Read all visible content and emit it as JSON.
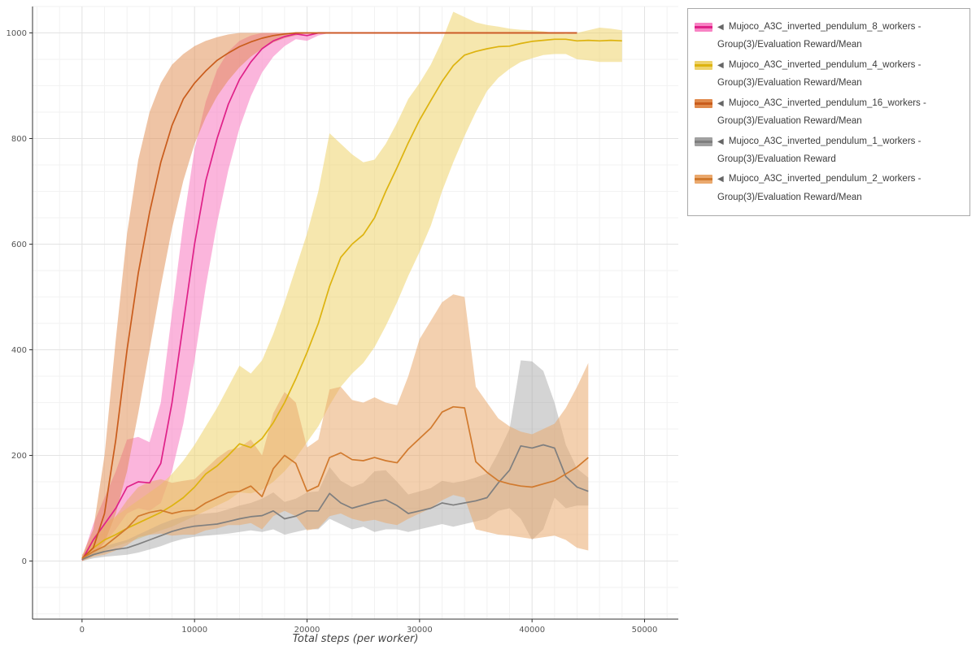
{
  "legend": {
    "marker": "◀",
    "border_color": "#a9a9a9"
  },
  "chart_data": {
    "type": "line",
    "title": "",
    "xlabel": "Total steps (per worker)",
    "ylabel": "",
    "xlim": [
      -4400,
      53000
    ],
    "ylim": [
      -110,
      1050
    ],
    "x_ticks": [
      0,
      10000,
      20000,
      30000,
      40000,
      50000
    ],
    "y_ticks": [
      0,
      200,
      400,
      600,
      800,
      1000
    ],
    "grid": true,
    "legend_position": "outside-top-right",
    "series": [
      {
        "key": "8_workers",
        "name": "Mujoco_A3C_inverted_pendulum_8_workers - Group(3)/Evaluation Reward/Mean",
        "color": "#df2188",
        "band_color": "#f883c4",
        "band_opacity": 0.6,
        "x": [
          0,
          1000,
          2000,
          3000,
          4000,
          5000,
          6000,
          7000,
          8000,
          9000,
          10000,
          11000,
          12000,
          13000,
          14000,
          15000,
          16000,
          17000,
          18000,
          19000,
          20000,
          21000,
          22000,
          23000,
          24000,
          25000,
          26000,
          27000,
          28000,
          29000,
          30000,
          31000,
          32000,
          33000,
          34000,
          35000,
          36000,
          37000,
          38000,
          39000,
          40000,
          41000,
          42000,
          43000,
          44000
        ],
        "mean": [
          2,
          40,
          70,
          100,
          140,
          150,
          148,
          185,
          300,
          450,
          600,
          720,
          800,
          865,
          912,
          945,
          970,
          985,
          993,
          998,
          995,
          1000,
          1000,
          1000,
          1000,
          1000,
          1000,
          1000,
          1000,
          1000,
          1000,
          1000,
          1000,
          1000,
          1000,
          1000,
          1000,
          1000,
          1000,
          1000,
          1000,
          1000,
          1000,
          1000,
          1000
        ],
        "lower": [
          0,
          15,
          35,
          60,
          90,
          100,
          95,
          110,
          170,
          260,
          380,
          520,
          640,
          740,
          820,
          880,
          925,
          955,
          975,
          988,
          985,
          995,
          1000,
          1000,
          1000,
          1000,
          1000,
          1000,
          1000,
          1000,
          1000,
          1000,
          1000,
          1000,
          1000,
          1000,
          1000,
          1000,
          1000,
          1000,
          1000,
          1000,
          1000,
          1000,
          1000
        ],
        "upper": [
          5,
          70,
          120,
          170,
          230,
          235,
          225,
          300,
          470,
          640,
          780,
          870,
          930,
          965,
          985,
          995,
          1000,
          1000,
          1000,
          1000,
          1000,
          1000,
          1000,
          1000,
          1000,
          1000,
          1000,
          1000,
          1000,
          1000,
          1000,
          1000,
          1000,
          1000,
          1000,
          1000,
          1000,
          1000,
          1000,
          1000,
          1000,
          1000,
          1000,
          1000,
          1000
        ]
      },
      {
        "key": "4_workers",
        "name": "Mujoco_A3C_inverted_pendulum_4_workers - Group(3)/Evaluation Reward/Mean",
        "color": "#ddb30f",
        "band_color": "#eed36c",
        "band_opacity": 0.55,
        "x": [
          0,
          1000,
          2000,
          3000,
          4000,
          5000,
          6000,
          7000,
          8000,
          9000,
          10000,
          11000,
          12000,
          13000,
          14000,
          15000,
          16000,
          17000,
          18000,
          19000,
          20000,
          21000,
          22000,
          23000,
          24000,
          25000,
          26000,
          27000,
          28000,
          29000,
          30000,
          31000,
          32000,
          33000,
          34000,
          35000,
          36000,
          37000,
          38000,
          39000,
          40000,
          41000,
          42000,
          43000,
          44000,
          45000,
          46000,
          47000,
          48000
        ],
        "mean": [
          3,
          25,
          40,
          50,
          62,
          72,
          82,
          92,
          105,
          120,
          140,
          165,
          180,
          200,
          222,
          215,
          232,
          262,
          300,
          345,
          395,
          450,
          520,
          575,
          600,
          618,
          650,
          700,
          745,
          792,
          835,
          872,
          908,
          938,
          958,
          965,
          970,
          974,
          975,
          980,
          984,
          986,
          988,
          988,
          985,
          986,
          985,
          986,
          985
        ],
        "lower": [
          0,
          10,
          20,
          28,
          35,
          42,
          50,
          58,
          65,
          75,
          85,
          95,
          105,
          115,
          130,
          128,
          135,
          150,
          170,
          195,
          225,
          255,
          295,
          330,
          355,
          375,
          405,
          445,
          490,
          540,
          585,
          635,
          700,
          755,
          805,
          850,
          890,
          915,
          932,
          945,
          952,
          958,
          960,
          960,
          950,
          948,
          945,
          945,
          945
        ],
        "upper": [
          8,
          45,
          70,
          85,
          100,
          115,
          130,
          145,
          165,
          190,
          220,
          255,
          290,
          330,
          370,
          355,
          380,
          430,
          490,
          555,
          620,
          700,
          810,
          790,
          770,
          755,
          760,
          790,
          830,
          875,
          905,
          940,
          985,
          1040,
          1030,
          1020,
          1015,
          1012,
          1008,
          1006,
          1005,
          1003,
          1000,
          998,
          1000,
          1005,
          1010,
          1008,
          1005
        ]
      },
      {
        "key": "16_workers",
        "name": "Mujoco_A3C_inverted_pendulum_16_workers - Group(3)/Evaluation Reward/Mean",
        "color": "#c95c1c",
        "band_color": "#e08a4c",
        "band_opacity": 0.5,
        "x": [
          0,
          1000,
          2000,
          3000,
          4000,
          5000,
          6000,
          7000,
          8000,
          9000,
          10000,
          11000,
          12000,
          13000,
          14000,
          15000,
          16000,
          17000,
          18000,
          19000,
          20000,
          21000,
          22000,
          23000,
          24000,
          25000,
          26000,
          27000,
          28000,
          29000,
          30000,
          31000,
          32000,
          33000,
          34000,
          35000,
          36000,
          37000,
          38000,
          39000,
          40000,
          41000,
          42000,
          43000,
          44000
        ],
        "mean": [
          5,
          25,
          90,
          230,
          400,
          545,
          660,
          755,
          825,
          875,
          905,
          928,
          948,
          962,
          974,
          983,
          990,
          995,
          998,
          1000,
          1000,
          1000,
          1000,
          1000,
          1000,
          1000,
          1000,
          1000,
          1000,
          1000,
          1000,
          1000,
          1000,
          1000,
          1000,
          1000,
          1000,
          1000,
          1000,
          1000,
          1000,
          1000,
          1000,
          1000,
          1000
        ],
        "lower": [
          0,
          10,
          35,
          90,
          170,
          280,
          400,
          520,
          630,
          720,
          790,
          840,
          880,
          910,
          935,
          955,
          970,
          982,
          990,
          995,
          1000,
          1000,
          1000,
          1000,
          1000,
          1000,
          1000,
          1000,
          1000,
          1000,
          1000,
          1000,
          1000,
          1000,
          1000,
          1000,
          1000,
          1000,
          1000,
          1000,
          1000,
          1000,
          1000,
          1000,
          1000
        ],
        "upper": [
          10,
          60,
          200,
          420,
          620,
          760,
          850,
          905,
          940,
          960,
          975,
          985,
          992,
          997,
          1000,
          1000,
          1000,
          1000,
          1000,
          1000,
          1000,
          1000,
          1000,
          1000,
          1000,
          1000,
          1000,
          1000,
          1000,
          1000,
          1000,
          1000,
          1000,
          1000,
          1000,
          1000,
          1000,
          1000,
          1000,
          1000,
          1000,
          1000,
          1000,
          1000,
          1000
        ]
      },
      {
        "key": "1_workers",
        "name": "Mujoco_A3C_inverted_pendulum_1_workers - Group(3)/Evaluation Reward",
        "color": "#7f7f7f",
        "band_color": "#a0a0a0",
        "band_opacity": 0.45,
        "x": [
          0,
          1000,
          2000,
          3000,
          4000,
          5000,
          6000,
          7000,
          8000,
          9000,
          10000,
          11000,
          12000,
          13000,
          14000,
          15000,
          16000,
          17000,
          18000,
          19000,
          20000,
          21000,
          22000,
          23000,
          24000,
          25000,
          26000,
          27000,
          28000,
          29000,
          30000,
          31000,
          32000,
          33000,
          34000,
          35000,
          36000,
          37000,
          38000,
          39000,
          40000,
          41000,
          42000,
          43000,
          44000,
          45000
        ],
        "mean": [
          3,
          12,
          18,
          22,
          25,
          32,
          40,
          48,
          56,
          62,
          66,
          68,
          70,
          75,
          80,
          84,
          86,
          95,
          80,
          85,
          95,
          95,
          128,
          110,
          100,
          106,
          112,
          116,
          105,
          90,
          95,
          100,
          110,
          106,
          110,
          114,
          120,
          148,
          172,
          218,
          214,
          220,
          214,
          160,
          140,
          132
        ],
        "lower": [
          0,
          5,
          8,
          10,
          12,
          16,
          22,
          28,
          36,
          42,
          46,
          48,
          50,
          52,
          55,
          58,
          55,
          60,
          50,
          55,
          60,
          60,
          80,
          70,
          60,
          65,
          55,
          60,
          60,
          55,
          60,
          65,
          70,
          65,
          70,
          75,
          80,
          95,
          100,
          80,
          40,
          60,
          120,
          100,
          105,
          105
        ],
        "upper": [
          6,
          20,
          28,
          34,
          40,
          50,
          60,
          70,
          78,
          84,
          88,
          90,
          92,
          98,
          105,
          110,
          118,
          130,
          112,
          118,
          130,
          132,
          178,
          152,
          140,
          148,
          170,
          172,
          150,
          126,
          132,
          138,
          152,
          148,
          152,
          158,
          166,
          205,
          250,
          380,
          378,
          360,
          300,
          220,
          175,
          158
        ]
      },
      {
        "key": "2_workers",
        "name": "Mujoco_A3C_inverted_pendulum_2_workers - Group(3)/Evaluation Reward/Mean",
        "color": "#d17a2e",
        "band_color": "#eaa96e",
        "band_opacity": 0.55,
        "x": [
          0,
          1000,
          2000,
          3000,
          4000,
          5000,
          6000,
          7000,
          8000,
          9000,
          10000,
          11000,
          12000,
          13000,
          14000,
          15000,
          16000,
          17000,
          18000,
          19000,
          20000,
          21000,
          22000,
          23000,
          24000,
          25000,
          26000,
          27000,
          28000,
          29000,
          30000,
          31000,
          32000,
          33000,
          34000,
          35000,
          36000,
          37000,
          38000,
          39000,
          40000,
          41000,
          42000,
          43000,
          44000,
          45000
        ],
        "mean": [
          5,
          18,
          28,
          45,
          62,
          85,
          92,
          96,
          90,
          95,
          96,
          110,
          120,
          130,
          132,
          142,
          122,
          175,
          200,
          185,
          132,
          142,
          196,
          205,
          192,
          190,
          196,
          190,
          186,
          212,
          232,
          252,
          282,
          292,
          290,
          188,
          168,
          152,
          146,
          142,
          140,
          146,
          152,
          165,
          178,
          196
        ],
        "lower": [
          0,
          8,
          12,
          20,
          30,
          45,
          50,
          52,
          48,
          50,
          50,
          58,
          62,
          68,
          68,
          72,
          60,
          85,
          95,
          85,
          58,
          62,
          85,
          90,
          80,
          75,
          78,
          72,
          68,
          80,
          90,
          100,
          115,
          125,
          120,
          60,
          55,
          50,
          48,
          45,
          42,
          45,
          48,
          40,
          25,
          20
        ],
        "upper": [
          12,
          35,
          55,
          85,
          115,
          140,
          150,
          155,
          148,
          152,
          155,
          175,
          195,
          210,
          215,
          230,
          200,
          280,
          320,
          300,
          215,
          230,
          325,
          330,
          305,
          300,
          310,
          300,
          295,
          350,
          420,
          455,
          490,
          505,
          500,
          330,
          300,
          270,
          255,
          245,
          240,
          250,
          260,
          290,
          330,
          375
        ]
      }
    ]
  }
}
